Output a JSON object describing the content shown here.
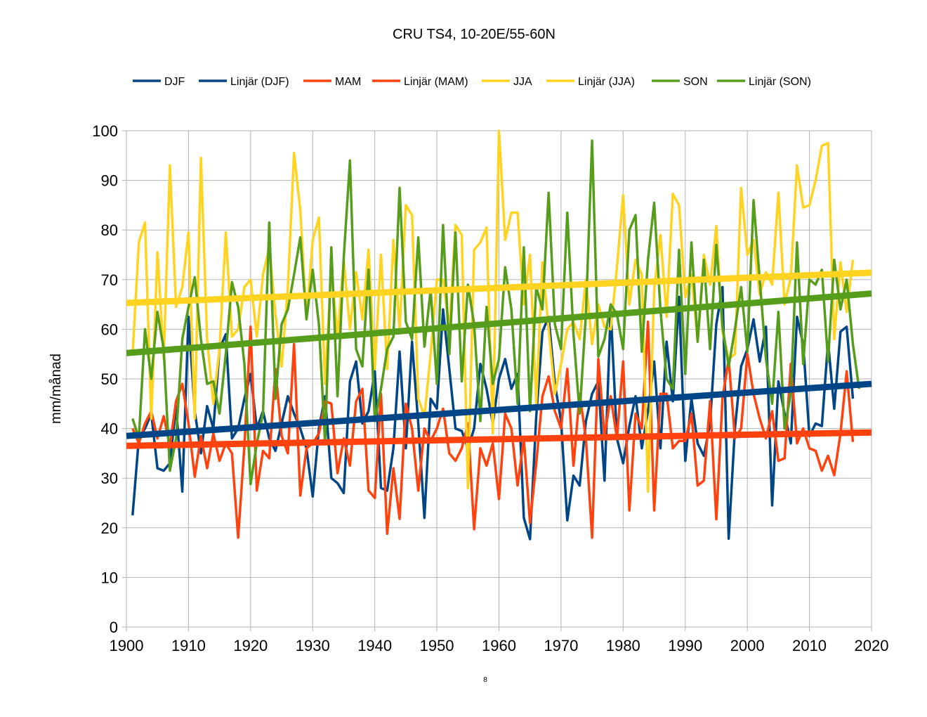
{
  "chart_data": {
    "type": "line",
    "title": "CRU TS4, 10-20E/55-60N",
    "ylabel": "mm/månad",
    "xlabel": "",
    "footnote": "8",
    "xlim": [
      1900,
      2020
    ],
    "ylim": [
      0,
      100
    ],
    "x_ticks": [
      "1900",
      "1910",
      "1920",
      "1930",
      "1940",
      "1950",
      "1960",
      "1970",
      "1980",
      "1990",
      "2000",
      "2010",
      "2020"
    ],
    "y_ticks": [
      "0",
      "10",
      "20",
      "30",
      "40",
      "50",
      "60",
      "70",
      "80",
      "90",
      "100"
    ],
    "grid": true,
    "legend_position": "top",
    "legend": [
      "DJF",
      "Linjär (DJF)",
      "MAM",
      "Linjär (MAM)",
      "JJA",
      "Linjär (JJA)",
      "SON",
      "Linjär (SON)"
    ],
    "years_start": 1901,
    "series": [
      {
        "name": "DJF",
        "color": "#004586",
        "values": [
          22.5,
          38,
          40,
          43,
          32,
          31.5,
          33,
          44.5,
          27.3,
          62.5,
          43.5,
          35,
          44.5,
          40,
          56,
          59,
          38,
          40,
          46,
          51,
          40,
          43.5,
          38,
          35.5,
          41,
          46.5,
          43,
          40,
          36,
          26.3,
          40,
          46.5,
          30,
          29,
          27,
          49.5,
          53.5,
          41,
          43.5,
          51.5,
          28,
          27.5,
          36,
          55.5,
          36,
          57.5,
          41,
          22,
          46,
          44,
          64,
          52,
          40,
          39.5,
          36,
          40,
          53,
          48,
          41,
          50,
          54,
          48,
          51,
          22,
          17.7,
          42.5,
          59.5,
          62.5,
          49,
          41.5,
          21.5,
          30.5,
          28.5,
          41.5,
          47,
          49.5,
          29.5,
          64,
          38,
          33,
          40.5,
          46.5,
          36,
          43.5,
          53.5,
          36,
          57.5,
          45.5,
          66.5,
          33.5,
          46,
          37,
          34.5,
          41,
          61,
          68.5,
          17.8,
          40,
          52.5,
          56,
          62,
          53.5,
          60.5,
          24.5,
          49.5,
          43,
          37,
          62.5,
          57,
          38.5,
          41,
          40.5,
          57.5,
          44,
          59.5,
          60.5,
          46
        ]
      },
      {
        "name": "MAM",
        "color": "#ff420e",
        "values": [
          40,
          37,
          41,
          43.5,
          38,
          42.5,
          36.5,
          45.5,
          49,
          41,
          30.3,
          38.5,
          32,
          39,
          33.5,
          37,
          35,
          18,
          36.5,
          60.5,
          27.5,
          35.5,
          34,
          52,
          38.5,
          35,
          57,
          26.5,
          36,
          37,
          39,
          45.5,
          45,
          31,
          38,
          32.5,
          45.5,
          48,
          27.5,
          26,
          47,
          18.8,
          32,
          21.8,
          45,
          40,
          27.5,
          40,
          37.5,
          40,
          44,
          35,
          33.5,
          36,
          41,
          19.7,
          36,
          32.5,
          37,
          25.8,
          43,
          40,
          28.5,
          38,
          21,
          33,
          46.5,
          50.5,
          43.5,
          40,
          52,
          32.5,
          47,
          38,
          18,
          54,
          38.5,
          46.5,
          38,
          53.5,
          23.5,
          43,
          40,
          61.5,
          23.5,
          47,
          47,
          36,
          37.5,
          37.5,
          43,
          28.5,
          29.5,
          45.5,
          21.7,
          46,
          54,
          38,
          40,
          55,
          47,
          42,
          38,
          43.5,
          33.5,
          34,
          53,
          37,
          40,
          36,
          35.5,
          31.5,
          34.5,
          30.6,
          39,
          51.5,
          37.3
        ]
      },
      {
        "name": "JJA",
        "color": "#ffd320",
        "values": [
          55,
          77.5,
          81.5,
          42,
          75.5,
          54,
          93,
          64.5,
          68.5,
          79.5,
          42,
          94.5,
          58,
          45,
          56,
          79.5,
          58.5,
          60,
          68.5,
          70,
          58.5,
          71,
          76.5,
          63,
          52.5,
          68.5,
          95.5,
          84,
          62,
          78,
          82.5,
          49,
          72.5,
          58.5,
          74,
          60,
          71.5,
          62,
          76,
          52,
          75,
          52,
          78,
          60,
          85,
          83,
          46,
          42.5,
          55,
          70,
          70,
          60,
          81,
          79,
          28,
          76,
          77.5,
          80.5,
          39,
          100,
          78,
          83.5,
          83.5,
          65,
          75,
          45,
          73.5,
          60,
          47,
          53,
          60,
          61.5,
          58,
          70,
          57,
          65,
          60.5,
          60,
          72.5,
          87,
          65,
          74,
          71,
          27.3,
          68,
          79,
          62.5,
          87.3,
          85,
          66.5,
          71,
          57.5,
          75,
          69,
          80.8,
          59.5,
          54,
          55,
          88.5,
          75,
          78,
          67,
          71.5,
          69,
          87.5,
          65,
          70.5,
          93,
          84.5,
          85,
          90,
          97,
          97.5,
          58,
          73.5,
          63.5,
          74
        ]
      },
      {
        "name": "SON",
        "color": "#579d1c",
        "values": [
          42,
          38,
          60,
          50,
          63.5,
          56,
          31.5,
          38,
          58,
          64.5,
          70.5,
          58,
          49,
          49.5,
          43,
          55,
          69.5,
          64.5,
          53,
          28.8,
          37,
          43,
          81.5,
          46,
          61,
          64,
          71,
          78.5,
          62,
          72,
          61,
          37,
          76.5,
          46.5,
          74.5,
          94,
          56,
          52.5,
          72,
          41.5,
          48,
          56,
          58.5,
          88.5,
          61.5,
          58,
          78.5,
          56.5,
          68,
          49,
          81,
          55,
          79.5,
          49.5,
          69,
          61,
          41.5,
          64.5,
          49,
          54,
          72.5,
          64,
          45,
          76.5,
          43.5,
          68.5,
          64,
          87.5,
          61,
          56,
          83.5,
          59,
          43,
          63,
          98,
          54.5,
          58,
          65,
          63,
          56,
          80,
          83,
          55.5,
          74,
          85.5,
          64,
          50,
          48,
          76,
          51,
          77.5,
          57.5,
          74,
          56,
          77,
          60.5,
          52.5,
          60,
          68.5,
          55.5,
          86,
          70,
          54,
          45,
          63.5,
          40,
          47,
          77.5,
          53,
          70,
          69,
          72,
          53.5,
          74,
          64,
          70,
          57,
          48
        ]
      }
    ],
    "trends": [
      {
        "name": "Linjär (DJF)",
        "color": "#004586",
        "x": [
          1900,
          2020
        ],
        "y": [
          38.5,
          49.0
        ]
      },
      {
        "name": "Linjär (MAM)",
        "color": "#ff420e",
        "x": [
          1900,
          2020
        ],
        "y": [
          36.5,
          39.2
        ]
      },
      {
        "name": "Linjär (JJA)",
        "color": "#ffd320",
        "x": [
          1900,
          2020
        ],
        "y": [
          65.3,
          71.4
        ]
      },
      {
        "name": "Linjär (SON)",
        "color": "#579d1c",
        "x": [
          1900,
          2020
        ],
        "y": [
          55.2,
          67.2
        ]
      }
    ]
  }
}
